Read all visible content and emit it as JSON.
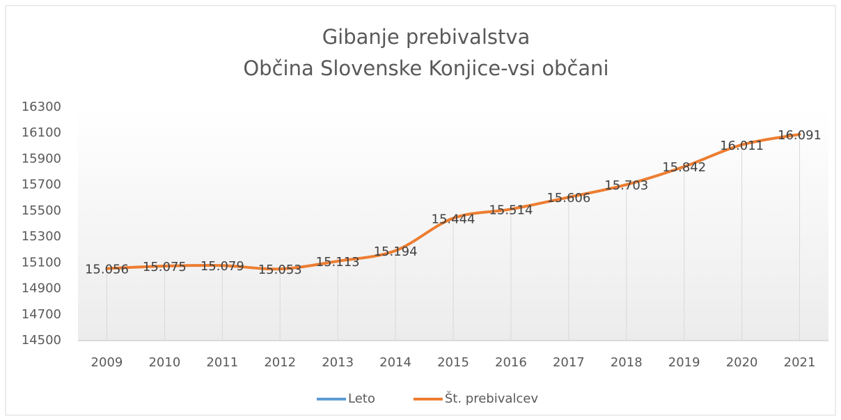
{
  "chart_data": {
    "type": "line",
    "title": [
      "Gibanje prebivalstva",
      "Občina Slovenske Konjice-vsi občani"
    ],
    "categories": [
      "2009",
      "2010",
      "2011",
      "2012",
      "2013",
      "2014",
      "2015",
      "2016",
      "2017",
      "2018",
      "2019",
      "2020",
      "2021"
    ],
    "series": [
      {
        "name": "Leto",
        "color": "#5b9bd5",
        "values": [
          null,
          null,
          null,
          null,
          null,
          null,
          null,
          null,
          null,
          null,
          null,
          null,
          null
        ]
      },
      {
        "name": "Št. prebivalcev",
        "color": "#ed7d31",
        "values": [
          15056,
          15075,
          15079,
          15053,
          15113,
          15194,
          15444,
          15514,
          15606,
          15703,
          15842,
          16011,
          16091
        ],
        "value_labels": [
          "15.056",
          "15.075",
          "15.079",
          "15.053",
          "15.113",
          "15.194",
          "15.444",
          "15.514",
          "15.606",
          "15.703",
          "15.842",
          "16.011",
          "16.091"
        ]
      }
    ],
    "ylim": [
      14500,
      16300
    ],
    "yticks": [
      14500,
      14700,
      14900,
      15100,
      15300,
      15500,
      15700,
      15900,
      16100,
      16300
    ],
    "grid": false,
    "legend": "bottom"
  }
}
